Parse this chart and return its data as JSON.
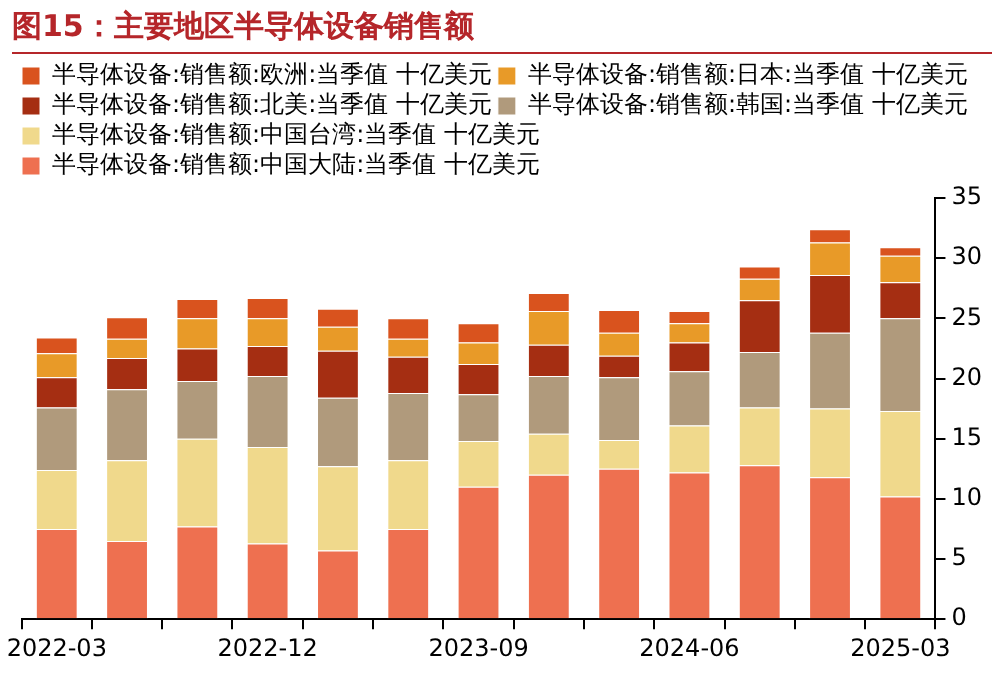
{
  "chart_data": {
    "type": "bar",
    "title": "图15：主要地区半导体设备销售额",
    "stacked": true,
    "legend": "top left",
    "grid": false,
    "categories": [
      "2022-03",
      null,
      null,
      "2022-12",
      null,
      null,
      "2023-09",
      null,
      null,
      "2024-06",
      null,
      null,
      "2025-03"
    ],
    "ylim": [
      0,
      35
    ],
    "yticks": [
      0,
      5,
      10,
      15,
      20,
      25,
      30,
      35
    ],
    "series": [
      {
        "name": "半导体设备:销售额:中国大陆:当季值 十亿美元",
        "color": "#ee7050",
        "values": [
          7.5,
          6.5,
          7.7,
          6.3,
          5.7,
          7.5,
          11.0,
          12.0,
          12.5,
          12.2,
          12.8,
          11.8,
          10.2
        ]
      },
      {
        "name": "半导体设备:销售额:中国台湾:当季值 十亿美元",
        "color": "#f0d98c",
        "values": [
          4.9,
          6.7,
          7.3,
          8.0,
          7.0,
          5.7,
          3.8,
          3.4,
          2.4,
          3.9,
          4.8,
          5.7,
          7.1
        ]
      },
      {
        "name": "半导体设备:销售额:韩国:当季值 十亿美元",
        "color": "#b09a7c",
        "values": [
          5.2,
          5.9,
          4.8,
          5.9,
          5.7,
          5.6,
          3.9,
          4.8,
          5.2,
          4.5,
          4.6,
          6.3,
          7.7
        ]
      },
      {
        "name": "半导体设备:销售额:北美:当季值 十亿美元",
        "color": "#a52e12",
        "values": [
          2.5,
          2.6,
          2.7,
          2.5,
          3.9,
          3.0,
          2.5,
          2.6,
          1.8,
          2.4,
          4.3,
          4.8,
          3.0
        ]
      },
      {
        "name": "半导体设备:销售额:日本:当季值 十亿美元",
        "color": "#e89a28",
        "values": [
          2.0,
          1.6,
          2.5,
          2.3,
          2.0,
          1.5,
          1.8,
          2.8,
          1.9,
          1.6,
          1.8,
          2.7,
          2.2
        ]
      },
      {
        "name": "半导体设备:销售额:欧洲:当季值 十亿美元",
        "color": "#d9531e",
        "values": [
          1.3,
          1.8,
          1.6,
          1.7,
          1.5,
          1.7,
          1.6,
          1.5,
          1.9,
          1.0,
          1.0,
          1.1,
          0.7
        ]
      }
    ]
  }
}
